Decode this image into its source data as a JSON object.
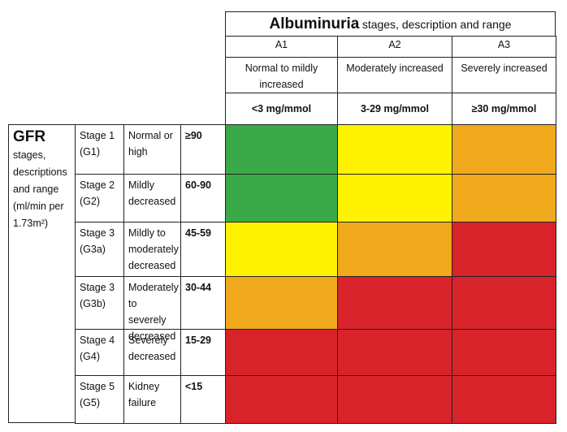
{
  "albuminuria": {
    "title": "Albuminuria",
    "subtitle": "stages, description and range",
    "columns": [
      {
        "code": "A1",
        "description": "Normal to mildly increased",
        "range": "<3 mg/mmol"
      },
      {
        "code": "A2",
        "description": "Moderately increased",
        "range": "3-29 mg/mmol"
      },
      {
        "code": "A3",
        "description": "Severely increased",
        "range": "≥30 mg/mmol"
      }
    ]
  },
  "gfr": {
    "title": "GFR",
    "subtitle": "stages, descriptions and range (ml/min per 1.73m²)",
    "rows": [
      {
        "stage": "Stage 1",
        "code": "(G1)",
        "description": "Normal or high",
        "range": "≥90",
        "colors": [
          "#3aaa48",
          "#fff200",
          "#f0a91d"
        ]
      },
      {
        "stage": "Stage 2",
        "code": "(G2)",
        "description": "Mildly decreased",
        "range": "60-90",
        "colors": [
          "#3aaa48",
          "#fff200",
          "#f0a91d"
        ]
      },
      {
        "stage": "Stage 3",
        "code": "(G3a)",
        "description": "Mildly to moderately decreased",
        "range": "45-59",
        "colors": [
          "#fff200",
          "#f0a91d",
          "#d9232a"
        ]
      },
      {
        "stage": "Stage 3",
        "code": "(G3b)",
        "description": "Moderately to severely decreased",
        "range": "30-44",
        "colors": [
          "#f0a91d",
          "#d9232a",
          "#d9232a"
        ]
      },
      {
        "stage": "Stage 4",
        "code": "(G4)",
        "description": "Severely decreased",
        "range": "15-29",
        "colors": [
          "#d9232a",
          "#d9232a",
          "#d9232a"
        ]
      },
      {
        "stage": "Stage 5",
        "code": "(G5)",
        "description": "Kidney failure",
        "range": "<15",
        "colors": [
          "#d9232a",
          "#d9232a",
          "#d9232a"
        ]
      }
    ]
  }
}
